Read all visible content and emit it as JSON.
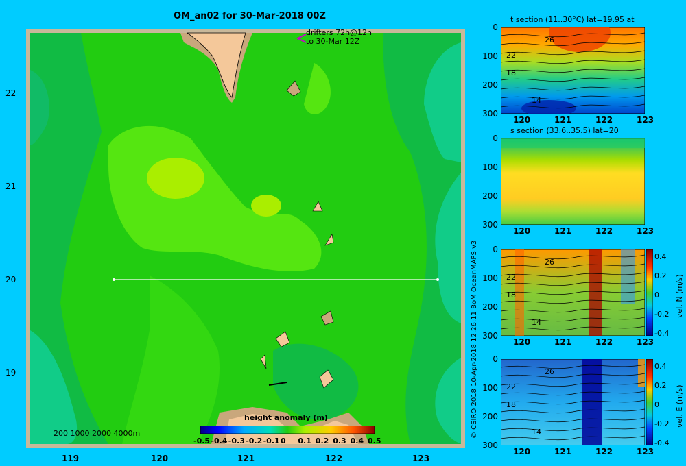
{
  "map": {
    "title": "OM_an02 for 30-Mar-2018 00Z",
    "drifters_line1": "drifters 72h@12h",
    "drifters_line2": "to 30-Mar 12Z",
    "depth_scale": "200  1000  2000  4000m",
    "lat_ticks": [
      "22",
      "21",
      "20",
      "19"
    ],
    "lon_ticks": [
      "119",
      "120",
      "121",
      "122",
      "123"
    ],
    "section_lat": "20"
  },
  "colorbar": {
    "title": "height anomaly  (m)",
    "ticks": [
      "-0.5",
      "-0.4",
      "-0.3",
      "-0.2",
      "-0.1",
      "0",
      "0.1",
      "0.2",
      "0.3",
      "0.4",
      "0.5"
    ]
  },
  "credit": "© CSIRO 2018   10-Apr-2018 12:26:11 BoM OceanMAPS v3",
  "sections": [
    {
      "title": "t section (11..30°C) lat=19.95 at",
      "contours": [
        "26",
        "22",
        "18",
        "14"
      ]
    },
    {
      "title": "s section (33.6..35.5) lat=20",
      "contours": []
    },
    {
      "title": "",
      "contours": [
        "26",
        "22",
        "18",
        "14"
      ],
      "cbar_label": "vel. N  (m/s)"
    },
    {
      "title": "",
      "contours": [
        "26",
        "22",
        "18",
        "14"
      ],
      "cbar_label": "vel. E  (m/s)"
    }
  ],
  "section_axes": {
    "depth_ticks": [
      "0",
      "100",
      "200",
      "300"
    ],
    "lon_ticks": [
      "120",
      "121",
      "122",
      "123"
    ]
  },
  "vel_cbar_ticks": [
    "0.4",
    "0.2",
    "0",
    "-0.2",
    "-0.4"
  ],
  "colors": {
    "background": "#00ccff",
    "land": "#f4c89a",
    "shelf": "#c9a77c",
    "field_main": "#22cc11",
    "field_light": "#55e611",
    "field_yellow": "#aaee00",
    "field_dark": "#11bb44",
    "field_teal": "#11cc88"
  }
}
